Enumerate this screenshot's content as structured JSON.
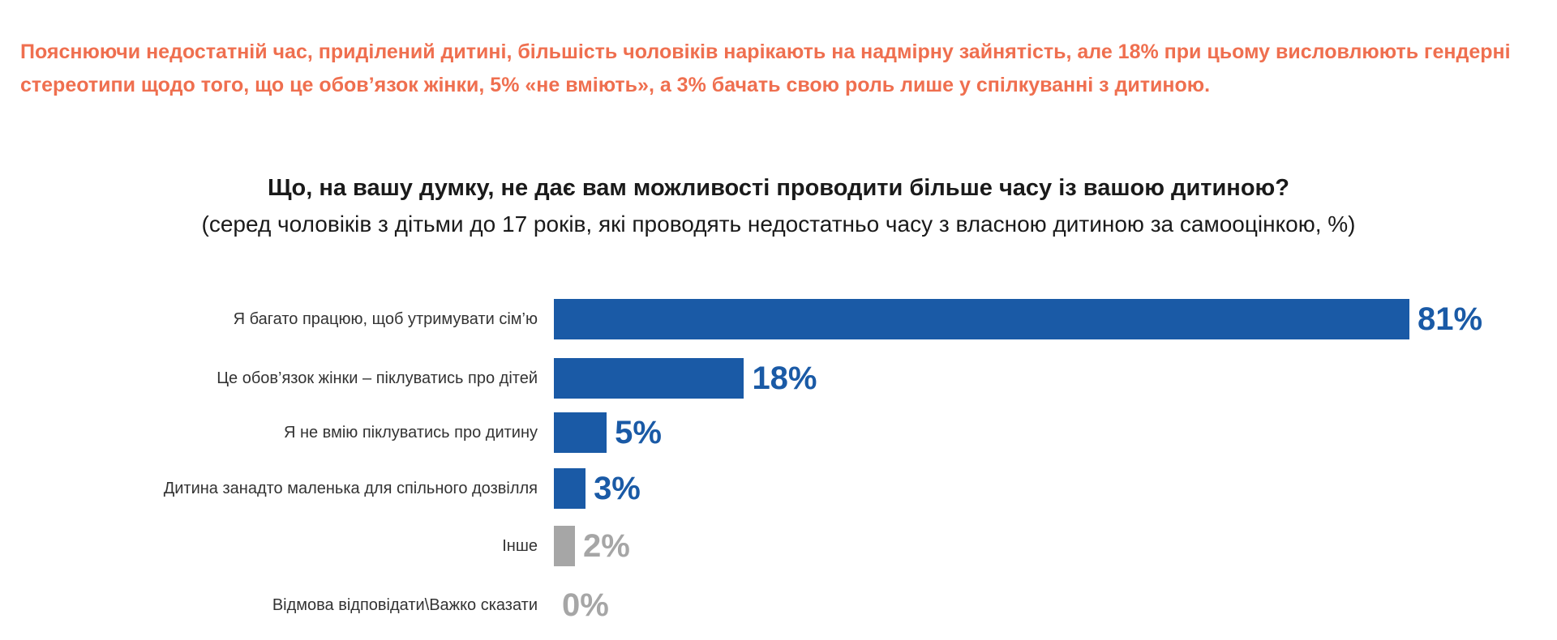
{
  "intro": "Пояснюючи недостатній час, приділений дитині, більшість чоловіків нарікають на надмірну зайнятість, але 18% при цьому висловлюють гендерні стереотипи щодо того, що це обов’язок жінки, 5% «не вміють», а 3% бачать свою роль лише у спілкуванні з дитиною.",
  "colors": {
    "intro": "#ef6f4f",
    "main": "#1a5aa6",
    "other": "#a6a6a6"
  },
  "chart_data": {
    "type": "bar",
    "orientation": "horizontal",
    "title": "Що, на вашу думку, не дає вам можливості проводити більше часу із вашою дитиною?",
    "subtitle": "(серед чоловіків з дітьми до 17 років, які проводять недостатньо часу з власною дитиною за самооцінкою, %)",
    "categories": [
      "Я багато працюю, щоб утримувати сім’ю",
      "Це обов’язок жінки – піклуватись про дітей",
      "Я не вмію піклуватись про дитину",
      "Дитина занадто маленька для спільного дозвілля",
      "Інше",
      "Відмова відповідати\\Важко сказати"
    ],
    "values": [
      81,
      18,
      5,
      3,
      2,
      0
    ],
    "value_labels": [
      "81%",
      "18%",
      "5%",
      "3%",
      "2%",
      "0%"
    ],
    "bar_colors": [
      "#1a5aa6",
      "#1a5aa6",
      "#1a5aa6",
      "#1a5aa6",
      "#a6a6a6",
      "#a6a6a6"
    ],
    "grid": false,
    "xlim": [
      0,
      81
    ]
  }
}
